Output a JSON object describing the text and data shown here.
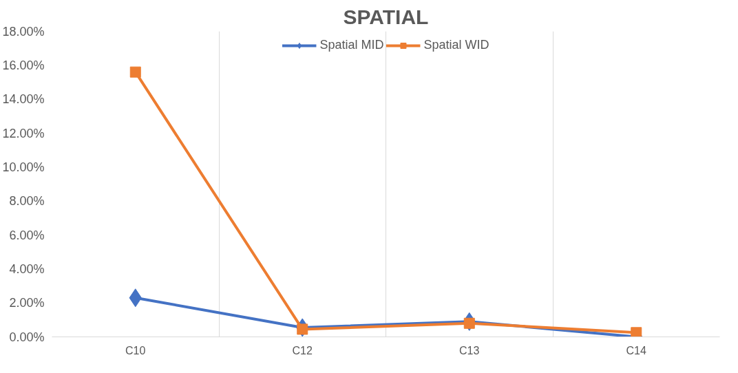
{
  "chart_data": {
    "type": "line",
    "title": "SPATIAL",
    "categories": [
      "C10",
      "C12",
      "C13",
      "C14"
    ],
    "series": [
      {
        "name": "Spatial MID",
        "color": "#4472c4",
        "marker": "diamond",
        "values": [
          2.3,
          0.55,
          0.9,
          0
        ]
      },
      {
        "name": "Spatial WID",
        "color": "#ed7d31",
        "marker": "square",
        "values": [
          15.6,
          0.45,
          0.8,
          0.25
        ]
      }
    ],
    "ylim": [
      0,
      18
    ],
    "yticks": [
      {
        "value": 0,
        "label": "0.00%"
      },
      {
        "value": 2,
        "label": "2.00%"
      },
      {
        "value": 4,
        "label": "4.00%"
      },
      {
        "value": 6,
        "label": "6.00%"
      },
      {
        "value": 8,
        "label": "8.00%"
      },
      {
        "value": 10,
        "label": "10.00%"
      },
      {
        "value": 12,
        "label": "12.00%"
      },
      {
        "value": 14,
        "label": "14.00%"
      },
      {
        "value": 16,
        "label": "16.00%"
      },
      {
        "value": 18,
        "label": "18.00%"
      }
    ],
    "grid": "x",
    "legend": "top",
    "line_style": "solid"
  }
}
